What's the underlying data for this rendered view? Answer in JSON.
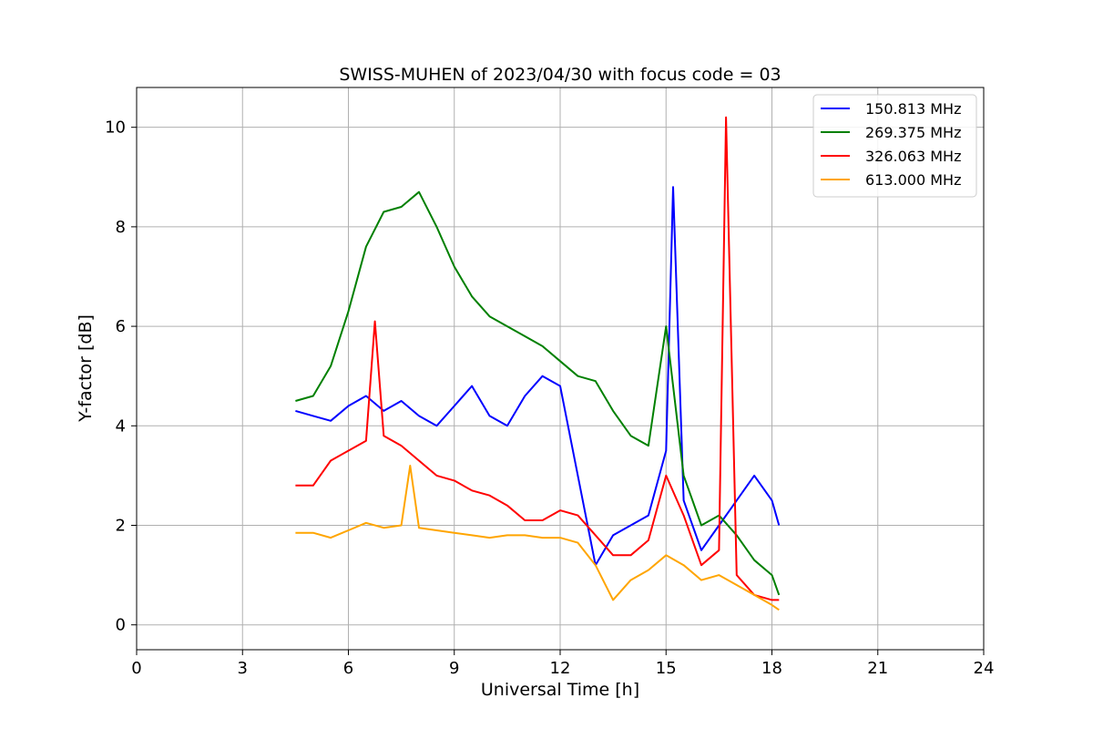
{
  "chart_data": {
    "type": "line",
    "title": "SWISS-MUHEN of 2023/04/30 with focus code = 03",
    "xlabel": "Universal Time [h]",
    "ylabel": "Y-factor [dB]",
    "xlim": [
      0,
      24
    ],
    "ylim": [
      -0.5,
      10.8
    ],
    "xticks": [
      0,
      3,
      6,
      9,
      12,
      15,
      18,
      21,
      24
    ],
    "yticks": [
      0,
      2,
      4,
      6,
      8,
      10
    ],
    "grid": true,
    "legend_position": "top-right",
    "series": [
      {
        "name": "150.813 MHz",
        "color": "#0000ff",
        "x": [
          4.5,
          5.0,
          5.5,
          6.0,
          6.5,
          7.0,
          7.5,
          8.0,
          8.5,
          9.0,
          9.5,
          10.0,
          10.5,
          11.0,
          11.5,
          12.0,
          12.5,
          13.0,
          13.5,
          14.0,
          14.5,
          15.0,
          15.2,
          15.5,
          16.0,
          16.5,
          17.0,
          17.5,
          18.0,
          18.2
        ],
        "y": [
          4.3,
          4.2,
          4.1,
          4.4,
          4.6,
          4.3,
          4.5,
          4.2,
          4.0,
          4.4,
          4.8,
          4.2,
          4.0,
          4.6,
          5.0,
          4.8,
          3.0,
          1.2,
          1.8,
          2.0,
          2.2,
          3.5,
          8.8,
          2.5,
          1.5,
          2.0,
          2.5,
          3.0,
          2.5,
          2.0
        ]
      },
      {
        "name": "269.375 MHz",
        "color": "#008000",
        "x": [
          4.5,
          5.0,
          5.5,
          6.0,
          6.5,
          7.0,
          7.5,
          8.0,
          8.5,
          9.0,
          9.5,
          10.0,
          10.5,
          11.0,
          11.5,
          12.0,
          12.5,
          13.0,
          13.5,
          14.0,
          14.5,
          15.0,
          15.5,
          16.0,
          16.5,
          17.0,
          17.5,
          18.0,
          18.2
        ],
        "y": [
          4.5,
          4.6,
          5.2,
          6.3,
          7.6,
          8.3,
          8.4,
          8.7,
          8.0,
          7.2,
          6.6,
          6.2,
          6.0,
          5.8,
          5.6,
          5.3,
          5.0,
          4.9,
          4.3,
          3.8,
          3.6,
          6.0,
          3.0,
          2.0,
          2.2,
          1.8,
          1.3,
          1.0,
          0.6
        ]
      },
      {
        "name": "326.063 MHz",
        "color": "#ff0000",
        "x": [
          4.5,
          5.0,
          5.5,
          6.0,
          6.5,
          6.75,
          7.0,
          7.5,
          8.0,
          8.5,
          9.0,
          9.5,
          10.0,
          10.5,
          11.0,
          11.5,
          12.0,
          12.5,
          13.0,
          13.5,
          14.0,
          14.5,
          15.0,
          15.5,
          16.0,
          16.5,
          16.7,
          17.0,
          17.5,
          18.0,
          18.2
        ],
        "y": [
          2.8,
          2.8,
          3.3,
          3.5,
          3.7,
          6.1,
          3.8,
          3.6,
          3.3,
          3.0,
          2.9,
          2.7,
          2.6,
          2.4,
          2.1,
          2.1,
          2.3,
          2.2,
          1.8,
          1.4,
          1.4,
          1.7,
          3.0,
          2.2,
          1.2,
          1.5,
          10.2,
          1.0,
          0.6,
          0.5,
          0.5
        ]
      },
      {
        "name": "613.000 MHz",
        "color": "#ffa500",
        "x": [
          4.5,
          5.0,
          5.5,
          6.0,
          6.5,
          7.0,
          7.5,
          7.75,
          8.0,
          8.5,
          9.0,
          9.5,
          10.0,
          10.5,
          11.0,
          11.5,
          12.0,
          12.5,
          13.0,
          13.5,
          14.0,
          14.5,
          15.0,
          15.5,
          16.0,
          16.5,
          17.0,
          17.5,
          18.0,
          18.2
        ],
        "y": [
          1.85,
          1.85,
          1.75,
          1.9,
          2.05,
          1.95,
          2.0,
          3.2,
          1.95,
          1.9,
          1.85,
          1.8,
          1.75,
          1.8,
          1.8,
          1.75,
          1.75,
          1.65,
          1.2,
          0.5,
          0.9,
          1.1,
          1.4,
          1.2,
          0.9,
          1.0,
          0.8,
          0.6,
          0.4,
          0.3
        ]
      }
    ]
  }
}
